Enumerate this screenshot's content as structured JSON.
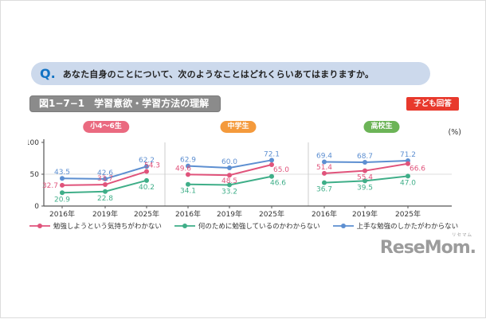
{
  "question": {
    "prefix": "Q.",
    "text": "あなた自身のことについて、次のようなことはどれくらいあてはまりますか。"
  },
  "figure": {
    "title": "図1−7−1　学習意欲・学習方法の理解",
    "respondent_badge": "子ども回答"
  },
  "logo": {
    "text": "ReseMom.",
    "ruby": "リセマム"
  },
  "colors": {
    "banner_bg": "#ccd9ec",
    "q_blue": "#1273c4",
    "title_bar": "#8b8b8b",
    "respondent_red": "#e8392c",
    "axis": "#555555",
    "grid": "#dddddd"
  },
  "chart_data": {
    "type": "line",
    "unit_label": "(%)",
    "x_categories": [
      "2016年",
      "2019年",
      "2025年"
    ],
    "y_ticks": [
      0,
      50,
      100
    ],
    "ylim": [
      0,
      100
    ],
    "grid_value": 50,
    "legend_position": "bottom",
    "legend": [
      {
        "name": "勉強しようという気持ちがわかない",
        "color": "#e0537b"
      },
      {
        "name": "何のために勉強しているのかわからない",
        "color": "#3fae88"
      },
      {
        "name": "上手な勉強のしかたがわからない",
        "color": "#5d8fd1"
      }
    ],
    "panels": [
      {
        "group": "小4〜6生",
        "badge_color": "#ea6a80",
        "series": [
          {
            "name": "勉強しようという気持ちがわかない",
            "values": [
              32.7,
              33.7,
              54.3
            ]
          },
          {
            "name": "何のために勉強しているのかわからない",
            "values": [
              20.9,
              22.8,
              40.2
            ]
          },
          {
            "name": "上手な勉強のしかたがわからない",
            "values": [
              43.5,
              42.6,
              62.2
            ]
          }
        ]
      },
      {
        "group": "中学生",
        "badge_color": "#f49a3c",
        "series": [
          {
            "name": "勉強しようという気持ちがわかない",
            "values": [
              49.6,
              48.5,
              65.0
            ]
          },
          {
            "name": "何のために勉強しているのかわからない",
            "values": [
              34.1,
              33.2,
              46.6
            ]
          },
          {
            "name": "上手な勉強のしかたがわからない",
            "values": [
              62.9,
              60.0,
              72.1
            ]
          }
        ]
      },
      {
        "group": "高校生",
        "badge_color": "#6cb457",
        "series": [
          {
            "name": "勉強しようという気持ちがわかない",
            "values": [
              51.4,
              55.4,
              66.6
            ]
          },
          {
            "name": "何のために勉強しているのかわからない",
            "values": [
              36.7,
              39.5,
              47.0
            ]
          },
          {
            "name": "上手な勉強のしかたがわからない",
            "values": [
              69.4,
              68.7,
              71.2
            ]
          }
        ]
      }
    ]
  }
}
